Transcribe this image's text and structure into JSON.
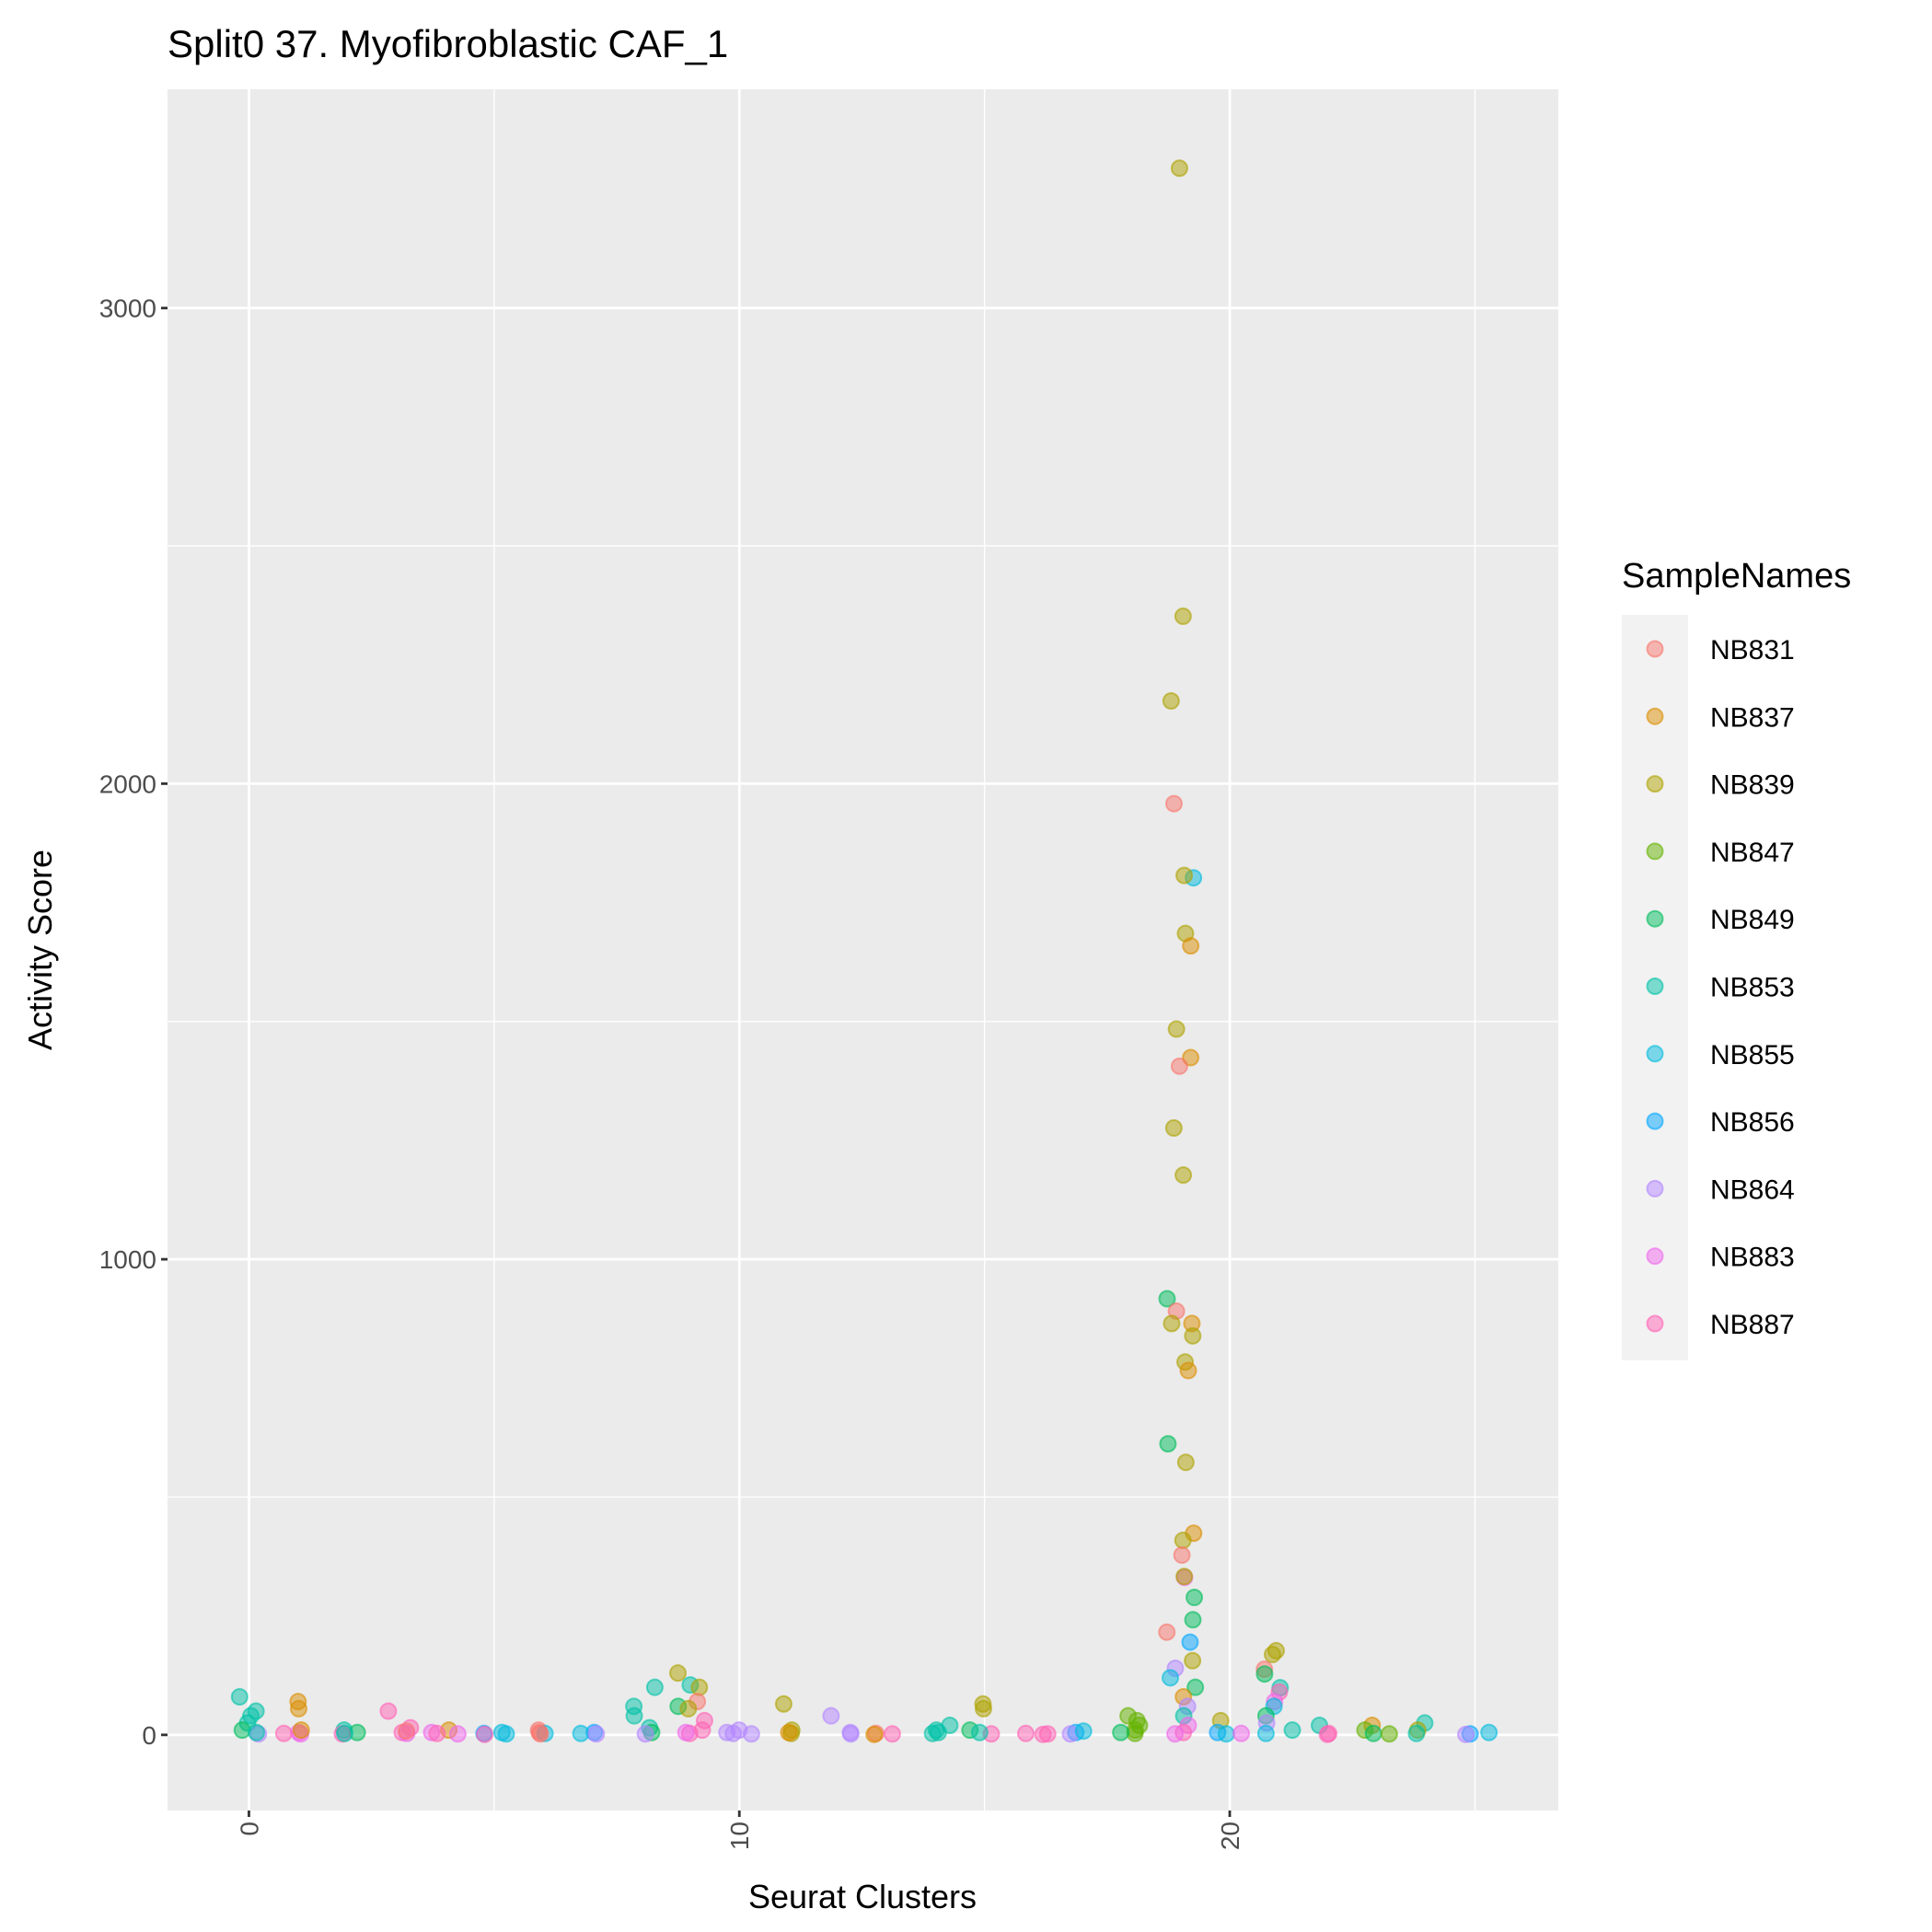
{
  "chart_data": {
    "type": "scatter",
    "title": "Split0 37. Myofibroblastic CAF_1",
    "xlabel": "Seurat Clusters",
    "ylabel": "Activity Score",
    "xlim": [
      -1.66,
      26.7
    ],
    "ylim": [
      -159,
      3460
    ],
    "xticks": [
      0,
      10,
      20
    ],
    "yticks": [
      0,
      1000,
      2000,
      3000
    ],
    "y_minor_gridlines": [
      500,
      1500,
      2500
    ],
    "x_minor_gridlines": [
      5,
      15,
      25
    ],
    "grid": true,
    "jitter": true,
    "point_alpha": 0.5,
    "legend": {
      "title": "SampleNames",
      "placement": "right",
      "entries": [
        "NB831",
        "NB837",
        "NB839",
        "NB847",
        "NB849",
        "NB853",
        "NB855",
        "NB856",
        "NB864",
        "NB883",
        "NB887"
      ],
      "colors": [
        "#F8766D",
        "#DB8E00",
        "#AEA200",
        "#64B200",
        "#00BD5C",
        "#00C1A7",
        "#00BADE",
        "#00A6FF",
        "#B385FF",
        "#EF67EB",
        "#FF63B6"
      ]
    },
    "points": [
      [
        0,
        "NB853",
        80
      ],
      [
        0,
        "NB853",
        50
      ],
      [
        0,
        "NB853",
        40
      ],
      [
        0,
        "NB853",
        25
      ],
      [
        0,
        "NB849",
        10
      ],
      [
        0,
        "NB864",
        2
      ],
      [
        0,
        "NB853",
        5
      ],
      [
        1,
        "NB837",
        70
      ],
      [
        1,
        "NB837",
        55
      ],
      [
        1,
        "NB883",
        5
      ],
      [
        1,
        "NB887",
        3
      ],
      [
        1,
        "NB883",
        2
      ],
      [
        1,
        "NB837",
        10
      ],
      [
        2,
        "NB853",
        10
      ],
      [
        2,
        "NB849",
        5
      ],
      [
        2,
        "NB887",
        2
      ],
      [
        2,
        "NB853",
        3
      ],
      [
        3,
        "NB887",
        50
      ],
      [
        3,
        "NB887",
        15
      ],
      [
        3,
        "NB887",
        5
      ],
      [
        3,
        "NB883",
        3
      ],
      [
        3,
        "NB831",
        8
      ],
      [
        4,
        "NB883",
        5
      ],
      [
        4,
        "NB837",
        10
      ],
      [
        4,
        "NB883",
        2
      ],
      [
        4,
        "NB887",
        3
      ],
      [
        5,
        "NB855",
        5
      ],
      [
        5,
        "NB856",
        3
      ],
      [
        5,
        "NB855",
        2
      ],
      [
        5,
        "NB887",
        1
      ],
      [
        6,
        "NB831",
        10
      ],
      [
        6,
        "NB855",
        3
      ],
      [
        6,
        "NB831",
        5
      ],
      [
        6,
        "NB831",
        2
      ],
      [
        7,
        "NB856",
        5
      ],
      [
        7,
        "NB855",
        3
      ],
      [
        7,
        "NB864",
        2
      ],
      [
        8,
        "NB853",
        100
      ],
      [
        8,
        "NB853",
        60
      ],
      [
        8,
        "NB853",
        40
      ],
      [
        8,
        "NB853",
        15
      ],
      [
        8,
        "NB849",
        5
      ],
      [
        8,
        "NB864",
        2
      ],
      [
        9,
        "NB839",
        130
      ],
      [
        9,
        "NB853",
        105
      ],
      [
        9,
        "NB839",
        100
      ],
      [
        9,
        "NB831",
        70
      ],
      [
        9,
        "NB849",
        60
      ],
      [
        9,
        "NB839",
        55
      ],
      [
        9,
        "NB887",
        30
      ],
      [
        9,
        "NB887",
        10
      ],
      [
        9,
        "NB887",
        3
      ],
      [
        9,
        "NB883",
        5
      ],
      [
        10,
        "NB864",
        10
      ],
      [
        10,
        "NB864",
        5
      ],
      [
        10,
        "NB864",
        2
      ],
      [
        10,
        "NB864",
        3
      ],
      [
        11,
        "NB839",
        65
      ],
      [
        11,
        "NB839",
        10
      ],
      [
        11,
        "NB839",
        3
      ],
      [
        11,
        "NB837",
        5
      ],
      [
        12,
        "NB864",
        40
      ],
      [
        12,
        "NB864",
        5
      ],
      [
        12,
        "NB864",
        2
      ],
      [
        13,
        "NB831",
        3
      ],
      [
        13,
        "NB887",
        2
      ],
      [
        13,
        "NB837",
        1
      ],
      [
        14,
        "NB853",
        20
      ],
      [
        14,
        "NB853",
        10
      ],
      [
        14,
        "NB853",
        3
      ],
      [
        14,
        "NB853",
        5
      ],
      [
        15,
        "NB839",
        65
      ],
      [
        15,
        "NB839",
        55
      ],
      [
        15,
        "NB849",
        10
      ],
      [
        15,
        "NB887",
        2
      ],
      [
        15,
        "NB853",
        5
      ],
      [
        16,
        "NB887",
        3
      ],
      [
        16,
        "NB887",
        1
      ],
      [
        16,
        "NB887",
        2
      ],
      [
        17,
        "NB856",
        5
      ],
      [
        17,
        "NB864",
        2
      ],
      [
        17,
        "NB855",
        8
      ],
      [
        18,
        "NB847",
        40
      ],
      [
        18,
        "NB847",
        30
      ],
      [
        18,
        "NB847",
        20
      ],
      [
        18,
        "NB847",
        10
      ],
      [
        18,
        "NB847",
        3
      ],
      [
        18,
        "NB849",
        5
      ],
      [
        19,
        "NB839",
        3294
      ],
      [
        19,
        "NB839",
        2352
      ],
      [
        19,
        "NB839",
        2174
      ],
      [
        19,
        "NB831",
        1958
      ],
      [
        19,
        "NB855",
        1802
      ],
      [
        19,
        "NB839",
        1807
      ],
      [
        19,
        "NB839",
        1685
      ],
      [
        19,
        "NB837",
        1659
      ],
      [
        19,
        "NB839",
        1484
      ],
      [
        19,
        "NB837",
        1424
      ],
      [
        19,
        "NB831",
        1406
      ],
      [
        19,
        "NB839",
        1276
      ],
      [
        19,
        "NB839",
        1177
      ],
      [
        19,
        "NB849",
        917
      ],
      [
        19,
        "NB831",
        891
      ],
      [
        19,
        "NB837",
        865
      ],
      [
        19,
        "NB839",
        865
      ],
      [
        19,
        "NB839",
        839
      ],
      [
        19,
        "NB839",
        784
      ],
      [
        19,
        "NB837",
        766
      ],
      [
        19,
        "NB849",
        612
      ],
      [
        19,
        "NB839",
        573
      ],
      [
        19,
        "NB837",
        424
      ],
      [
        19,
        "NB839",
        409
      ],
      [
        19,
        "NB831",
        378
      ],
      [
        19,
        "NB883",
        331
      ],
      [
        19,
        "NB839",
        333
      ],
      [
        19,
        "NB849",
        289
      ],
      [
        19,
        "NB849",
        242
      ],
      [
        19,
        "NB831",
        216
      ],
      [
        19,
        "NB856",
        195
      ],
      [
        19,
        "NB839",
        156
      ],
      [
        19,
        "NB864",
        140
      ],
      [
        19,
        "NB855",
        120
      ],
      [
        19,
        "NB849",
        100
      ],
      [
        19,
        "NB837",
        80
      ],
      [
        19,
        "NB864",
        60
      ],
      [
        19,
        "NB853",
        40
      ],
      [
        19,
        "NB883",
        20
      ],
      [
        19,
        "NB887",
        5
      ],
      [
        19,
        "NB883",
        2
      ],
      [
        20,
        "NB839",
        30
      ],
      [
        20,
        "NB856",
        5
      ],
      [
        20,
        "NB855",
        2
      ],
      [
        20,
        "NB883",
        3
      ],
      [
        21,
        "NB839",
        177
      ],
      [
        21,
        "NB839",
        169
      ],
      [
        21,
        "NB831",
        138
      ],
      [
        21,
        "NB849",
        128
      ],
      [
        21,
        "NB853",
        99
      ],
      [
        21,
        "NB887",
        90
      ],
      [
        21,
        "NB883",
        70
      ],
      [
        21,
        "NB855",
        60
      ],
      [
        21,
        "NB849",
        40
      ],
      [
        21,
        "NB864",
        25
      ],
      [
        21,
        "NB853",
        10
      ],
      [
        21,
        "NB855",
        3
      ],
      [
        22,
        "NB853",
        20
      ],
      [
        22,
        "NB887",
        3
      ],
      [
        22,
        "NB887",
        1
      ],
      [
        23,
        "NB837",
        20
      ],
      [
        23,
        "NB847",
        10
      ],
      [
        23,
        "NB849",
        3
      ],
      [
        23,
        "NB847",
        2
      ],
      [
        24,
        "NB853",
        25
      ],
      [
        24,
        "NB839",
        10
      ],
      [
        24,
        "NB853",
        3
      ],
      [
        25,
        "NB855",
        5
      ],
      [
        25,
        "NB856",
        2
      ],
      [
        25,
        "NB864",
        1
      ]
    ]
  }
}
